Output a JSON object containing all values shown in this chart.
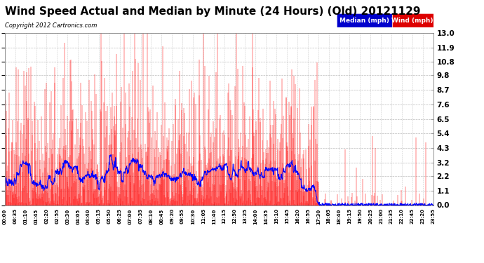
{
  "title": "Wind Speed Actual and Median by Minute (24 Hours) (Old) 20121129",
  "copyright": "Copyright 2012 Cartronics.com",
  "ylabel_right_ticks": [
    0.0,
    1.1,
    2.2,
    3.2,
    4.3,
    5.4,
    6.5,
    7.6,
    8.7,
    9.8,
    10.8,
    11.9,
    13.0
  ],
  "ymax": 13.0,
  "ymin": 0.0,
  "legend_labels": [
    "Median (mph)",
    "Wind (mph)"
  ],
  "legend_colors_bg": [
    "#0000cc",
    "#dd0000"
  ],
  "background_color": "#ffffff",
  "plot_bg_color": "#ffffff",
  "grid_color": "#aaaaaa",
  "wind_color": "#ff0000",
  "median_color": "#0000ff",
  "title_fontsize": 11,
  "n_minutes": 1440,
  "active_cutoff": 1055,
  "x_tick_labels": [
    "00:00",
    "00:35",
    "01:10",
    "01:45",
    "02:20",
    "02:55",
    "03:30",
    "04:05",
    "04:40",
    "05:15",
    "05:50",
    "06:25",
    "07:00",
    "07:35",
    "08:10",
    "08:45",
    "09:20",
    "09:55",
    "10:30",
    "11:05",
    "11:40",
    "12:15",
    "12:50",
    "13:25",
    "14:00",
    "14:35",
    "15:10",
    "15:45",
    "16:20",
    "16:55",
    "17:30",
    "18:05",
    "18:40",
    "19:15",
    "19:50",
    "20:25",
    "21:00",
    "21:35",
    "22:10",
    "22:45",
    "23:20",
    "23:55"
  ]
}
